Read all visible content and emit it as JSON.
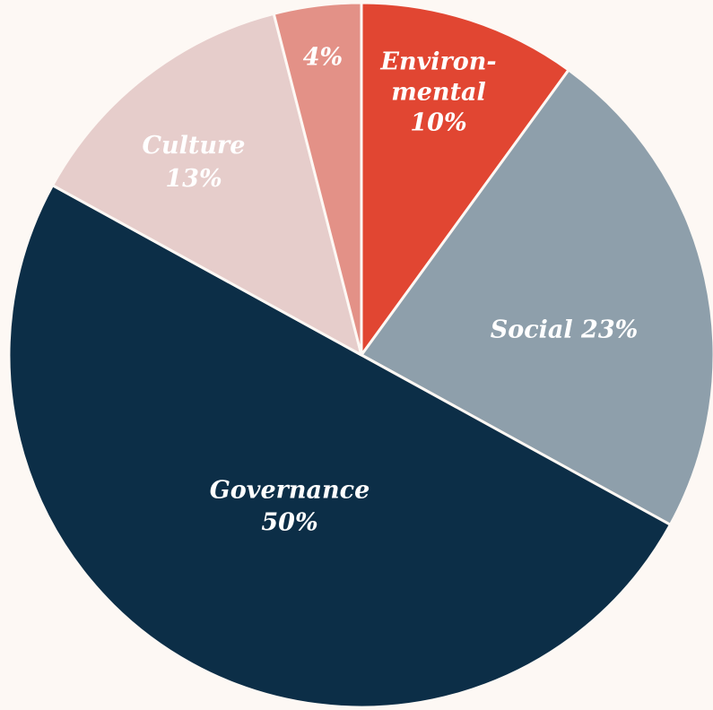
{
  "chart_data": {
    "type": "pie",
    "start_angle_deg": 0,
    "direction": "clockwise",
    "slices": [
      {
        "key": "environmental",
        "label_lines": [
          "Environ-",
          "mental",
          "10%"
        ],
        "value": 10,
        "color": "#e14632",
        "label_color": "#ffffff"
      },
      {
        "key": "social",
        "label_lines": [
          "Social 23%"
        ],
        "value": 23,
        "color": "#8e9fab",
        "label_color": "#ffffff"
      },
      {
        "key": "governance",
        "label_lines": [
          "Governance",
          "50%"
        ],
        "value": 50,
        "color": "#0c2e47",
        "label_color": "#ffffff"
      },
      {
        "key": "culture",
        "label_lines": [
          "Culture",
          "13%"
        ],
        "value": 13,
        "color": "#e6cdcb",
        "label_color": "#ffffff"
      },
      {
        "key": "other",
        "label_lines": [
          "4%"
        ],
        "value": 4,
        "color": "#e39187",
        "label_color": "#ffffff"
      }
    ]
  }
}
